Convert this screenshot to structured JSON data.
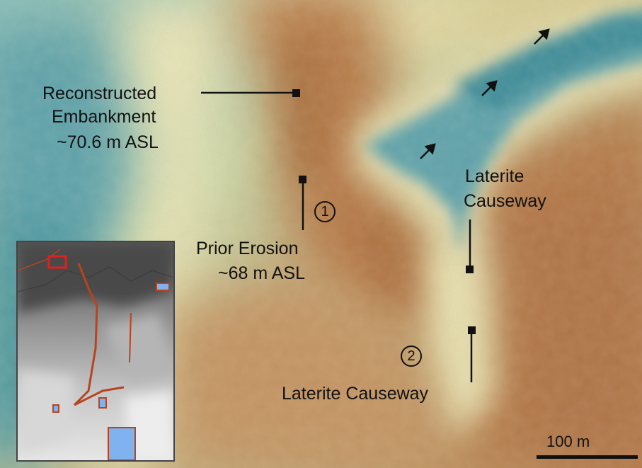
{
  "labels": {
    "embankment": [
      "Reconstructed",
      "Embankment",
      "~70.6 m ASL"
    ],
    "erosion": [
      "Prior Erosion",
      "~68 m ASL"
    ],
    "causeway_upper": [
      "Laterite",
      "Causeway"
    ],
    "causeway_lower": "Laterite Causeway"
  },
  "markers": {
    "one": "1",
    "two": "2"
  },
  "scale_bar": {
    "label": "100 m"
  },
  "colors": {
    "ridge": "#b77a4a",
    "ridge_light": "#c99b6b",
    "plain": "#d8cc98",
    "pale": "#ece7b9",
    "water": "#5ea4ad",
    "water_deep": "#3f8f9c",
    "inset_feature": "#b6441f",
    "inset_pond": "#7fb2ef",
    "inset_highlight": "#e0201a"
  },
  "icons": {
    "flow": "arrow-northeast-icon",
    "marker": "square-marker-icon"
  }
}
